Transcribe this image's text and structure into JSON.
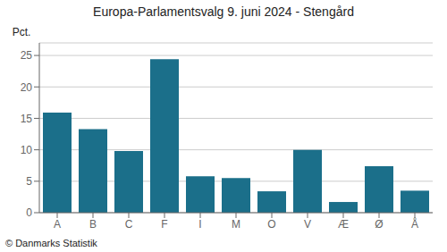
{
  "chart_data": {
    "type": "bar",
    "title": "Europa-Parlamentsvalg 9. juni 2024 - Stengård",
    "ylabel": "Pct.",
    "annotations": [
      "© Danmarks Statistik"
    ],
    "categories": [
      "A",
      "B",
      "C",
      "F",
      "I",
      "M",
      "O",
      "V",
      "Æ",
      "Ø",
      "Å"
    ],
    "values": [
      15.9,
      13.3,
      9.8,
      24.4,
      5.8,
      5.5,
      3.4,
      10.0,
      1.7,
      7.4,
      3.5
    ],
    "color": "#1b6f8a",
    "ylim": [
      0,
      27
    ],
    "yticks": [
      0,
      5,
      10,
      15,
      20,
      25
    ],
    "grid": true
  }
}
